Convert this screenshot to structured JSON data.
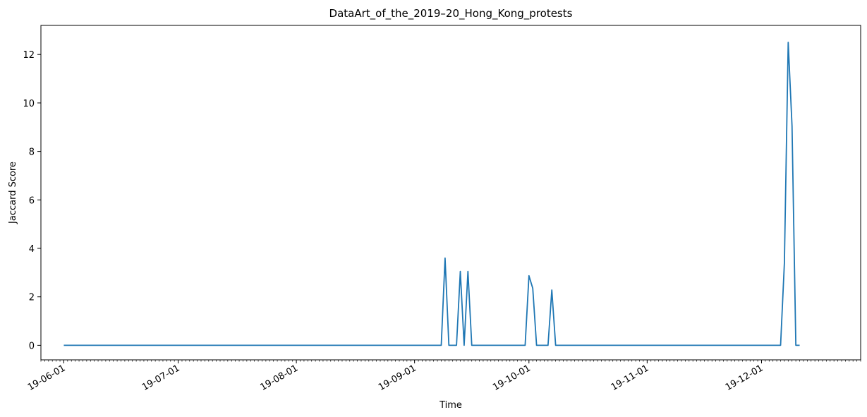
{
  "chart_data": {
    "type": "line",
    "title": "DataArt_of_the_2019–20_Hong_Kong_protests",
    "xlabel": "Time",
    "ylabel": "Jaccard Score",
    "x_tick_labels": [
      "19-06-01",
      "19-07-01",
      "19-08-01",
      "19-09-01",
      "19-10-01",
      "19-11-01",
      "19-12-01"
    ],
    "x_tick_dates": [
      "2019-06-01",
      "2019-07-01",
      "2019-08-01",
      "2019-09-01",
      "2019-10-01",
      "2019-11-01",
      "2019-12-01"
    ],
    "y_ticks": [
      0,
      2,
      4,
      6,
      8,
      10,
      12
    ],
    "xlim": [
      "2019-05-26",
      "2019-12-27"
    ],
    "ylim": [
      -0.6,
      13.2
    ],
    "grid": false,
    "color": "#1f77b4",
    "series": [
      {
        "x": [
          "2019-06-01",
          "2019-09-08",
          "2019-09-09",
          "2019-09-10",
          "2019-09-12",
          "2019-09-13",
          "2019-09-14",
          "2019-09-15",
          "2019-09-16",
          "2019-09-30",
          "2019-10-01",
          "2019-10-02",
          "2019-10-03",
          "2019-10-06",
          "2019-10-07",
          "2019-10-08",
          "2019-12-06",
          "2019-12-07",
          "2019-12-08",
          "2019-12-09",
          "2019-12-10",
          "2019-12-11"
        ],
        "y": [
          0,
          0,
          3.6,
          0,
          0,
          3.05,
          0,
          3.05,
          0,
          0,
          2.87,
          2.35,
          0,
          0,
          2.28,
          0,
          0,
          3.4,
          12.5,
          9.05,
          0,
          0
        ]
      }
    ]
  }
}
